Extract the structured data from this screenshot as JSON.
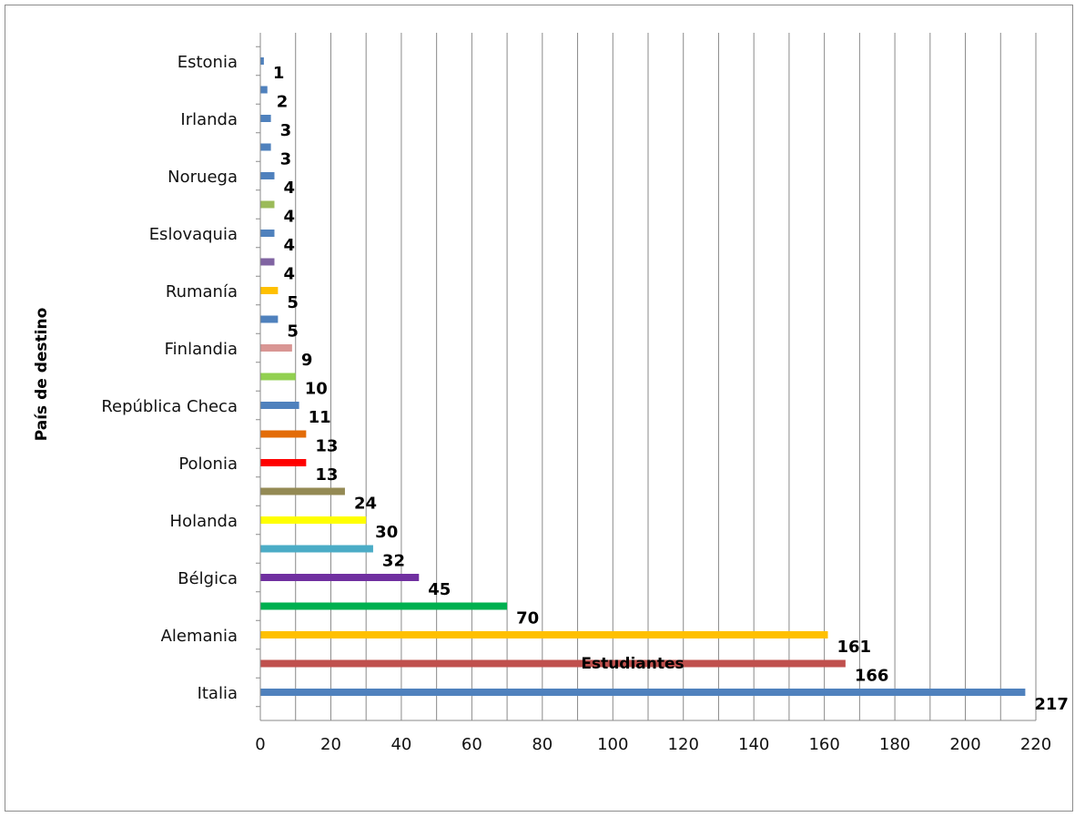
{
  "chart_data": {
    "type": "bar",
    "orientation": "horizontal",
    "title": "",
    "xlabel": "Estudiantes",
    "ylabel": "País de destino",
    "xlim": [
      0,
      220
    ],
    "xticks": [
      0,
      20,
      40,
      60,
      80,
      100,
      120,
      140,
      160,
      180,
      200,
      220
    ],
    "grid": "vertical",
    "legend": "none",
    "categories": [
      "Italia",
      "",
      "Alemania",
      "",
      "Bélgica",
      "",
      "Holanda",
      "",
      "Polonia",
      "",
      "República Checa",
      "",
      "Finlandia",
      "",
      "Rumanía",
      "",
      "Eslovaquia",
      "",
      "Noruega",
      "",
      "Irlanda",
      "",
      "Estonia"
    ],
    "values": [
      217,
      166,
      161,
      70,
      45,
      32,
      30,
      24,
      13,
      13,
      11,
      10,
      9,
      5,
      5,
      4,
      4,
      4,
      4,
      3,
      3,
      2,
      1
    ],
    "colors": [
      "#4f81bd",
      "#c0504d",
      "#ffc000",
      "#00b050",
      "#7030a0",
      "#4bacc6",
      "#ffff00",
      "#948a54",
      "#ff0000",
      "#e36c09",
      "#4f81bd",
      "#92d050",
      "#d99694",
      "#4f81bd",
      "#ffc000",
      "#8064a2",
      "#4f81bd",
      "#9bbb59",
      "#4f81bd",
      "#4f81bd",
      "#4f81bd",
      "#4f81bd",
      "#4f81bd"
    ]
  }
}
